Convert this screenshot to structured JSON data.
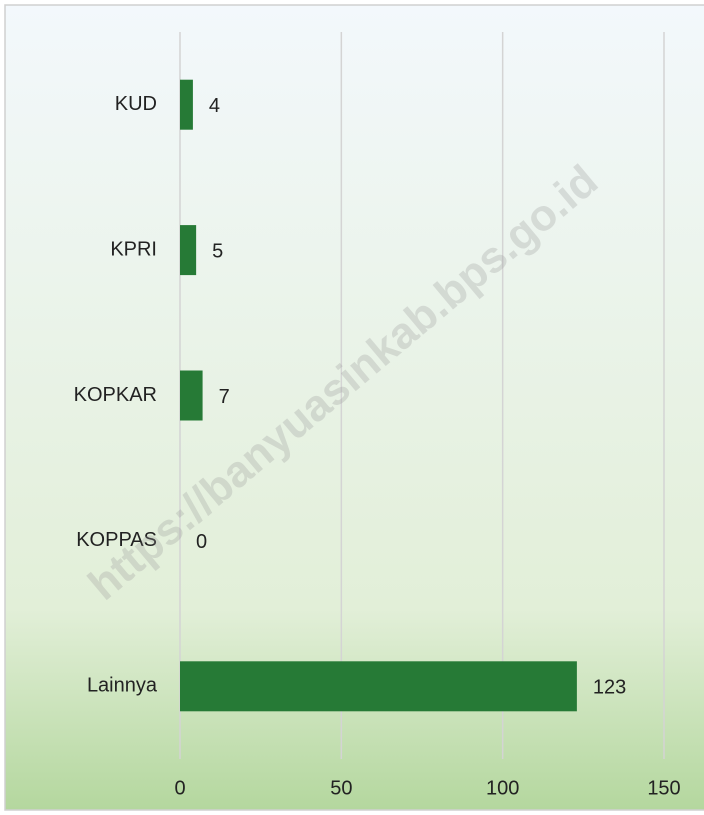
{
  "chart_data": {
    "type": "bar",
    "orientation": "horizontal",
    "categories": [
      "KUD",
      "KPRI",
      "KOPKAR",
      "KOPPAS",
      "Lainnya"
    ],
    "values": [
      4,
      5,
      7,
      0,
      123
    ],
    "color": "#267a36",
    "xlim": [
      0,
      150
    ],
    "xticks": [
      0,
      50,
      100,
      150
    ],
    "grid": true,
    "watermark": "https://banyuasinkab.bps.go.id"
  }
}
